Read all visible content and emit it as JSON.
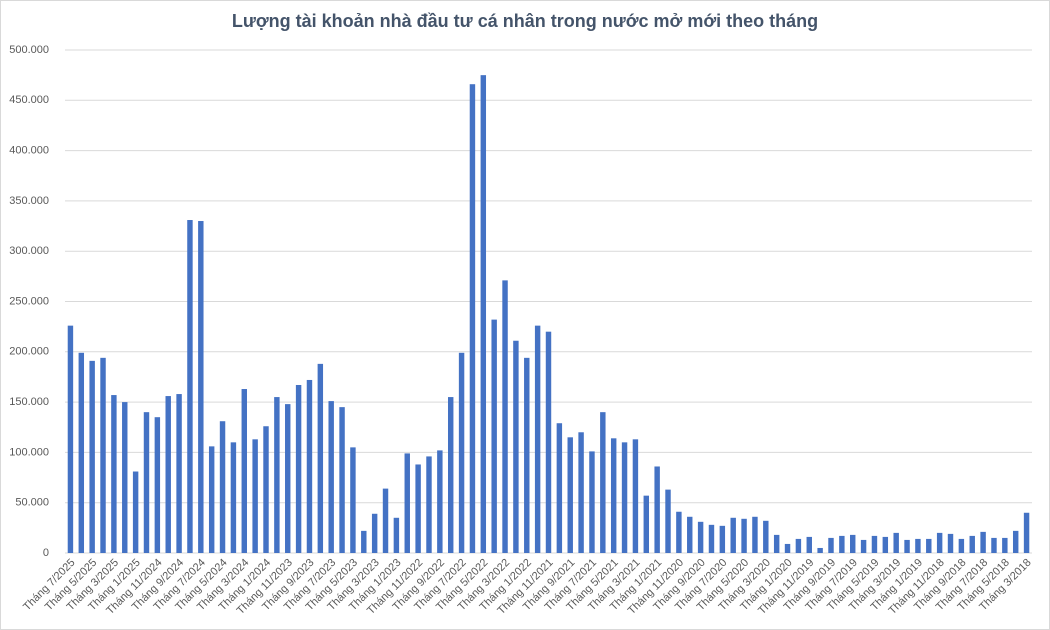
{
  "chart_data": {
    "type": "bar",
    "title": "Lượng tài khoản nhà đầu tư cá nhân trong nước mở mới theo tháng",
    "categories": [
      "Tháng 7/2025",
      null,
      "Tháng 5/2025",
      null,
      "Tháng 3/2025",
      null,
      "Tháng 1/2025",
      null,
      "Tháng 11/2024",
      null,
      "Tháng 9/2024",
      null,
      "Tháng 7/2024",
      null,
      "Tháng 5/2024",
      null,
      "Tháng 3/2024",
      null,
      "Tháng 1/2024",
      null,
      "Tháng 11/2023",
      null,
      "Tháng 9/2023",
      null,
      "Tháng 7/2023",
      null,
      "Tháng 5/2023",
      null,
      "Tháng 3/2023",
      null,
      "Tháng 1/2023",
      null,
      "Tháng 11/2022",
      null,
      "Tháng 9/2022",
      null,
      "Tháng 7/2022",
      null,
      "Tháng 5/2022",
      null,
      "Tháng 3/2022",
      null,
      "Tháng 1/2022",
      null,
      "Tháng 11/2021",
      null,
      "Tháng 9/2021",
      null,
      "Tháng 7/2021",
      null,
      "Tháng 5/2021",
      null,
      "Tháng 3/2021",
      null,
      "Tháng 1/2021",
      null,
      "Tháng 11/2020",
      null,
      "Tháng 9/2020",
      null,
      "Tháng 7/2020",
      null,
      "Tháng 5/2020",
      null,
      "Tháng 3/2020",
      null,
      "Tháng 1/2020",
      null,
      "Tháng 11/2019",
      null,
      "Tháng 9/2019",
      null,
      "Tháng 7/2019",
      null,
      "Tháng 5/2019",
      null,
      "Tháng 3/2019",
      null,
      "Tháng 1/2019",
      null,
      "Tháng 11/2018",
      null,
      "Tháng 9/2018",
      null,
      "Tháng 7/2018",
      null,
      "Tháng 5/2018",
      null,
      "Tháng 3/2018"
    ],
    "values": [
      226000,
      199000,
      191000,
      194000,
      157000,
      150000,
      81000,
      140000,
      135000,
      156000,
      158000,
      331000,
      330000,
      106000,
      131000,
      110000,
      163000,
      113000,
      126000,
      155000,
      148000,
      167000,
      172000,
      188000,
      151000,
      145000,
      105000,
      22000,
      39000,
      64000,
      35000,
      99000,
      88000,
      96000,
      102000,
      155000,
      199000,
      466000,
      475000,
      232000,
      271000,
      211000,
      194000,
      226000,
      220000,
      129000,
      115000,
      120000,
      101000,
      140000,
      114000,
      110000,
      113000,
      57000,
      86000,
      63000,
      41000,
      36000,
      31000,
      28000,
      27000,
      35000,
      34000,
      36000,
      32000,
      18000,
      9000,
      14000,
      16000,
      5000,
      15000,
      17000,
      18000,
      13000,
      17000,
      16000,
      20000,
      13000,
      14000,
      14000,
      20000,
      19000,
      14000,
      17000,
      21000,
      15000,
      15000,
      22000,
      40000
    ],
    "color": "#4472c4",
    "ylim": [
      0,
      500000
    ],
    "yticks": [
      0,
      {
        "value": 50000,
        "label": "50.000"
      },
      {
        "value": 100000,
        "label": "100.000"
      },
      {
        "value": 150000,
        "label": "150.000"
      },
      {
        "value": 200000,
        "label": "200.000"
      },
      {
        "value": 250000,
        "label": "250.000"
      },
      {
        "value": 300000,
        "label": "300.000"
      },
      {
        "value": 350000,
        "label": "350.000"
      },
      {
        "value": 400000,
        "label": "400.000"
      },
      {
        "value": 450000,
        "label": "450.000"
      },
      {
        "value": 500000,
        "label": "500.000"
      }
    ],
    "grid": true
  }
}
